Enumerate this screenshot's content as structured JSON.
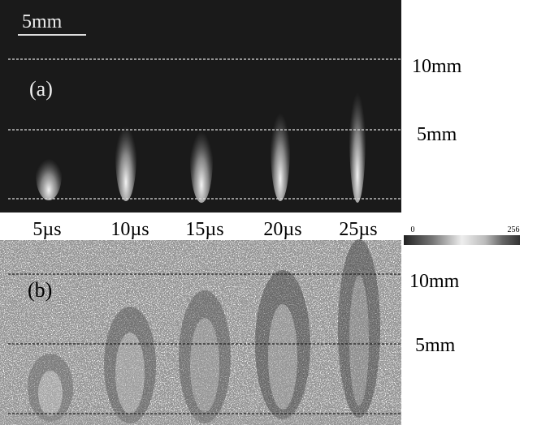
{
  "panel_a": {
    "label": "(a)",
    "scale_bar": "5mm",
    "distance_labels": [
      "10mm",
      "5mm"
    ]
  },
  "time_labels": [
    "5µs",
    "10µs",
    "15µs",
    "20µs",
    "25µs"
  ],
  "colorbar": {
    "min": "0",
    "max": "256"
  },
  "panel_b": {
    "label": "(b)",
    "distance_labels": [
      "10mm",
      "5mm"
    ]
  }
}
